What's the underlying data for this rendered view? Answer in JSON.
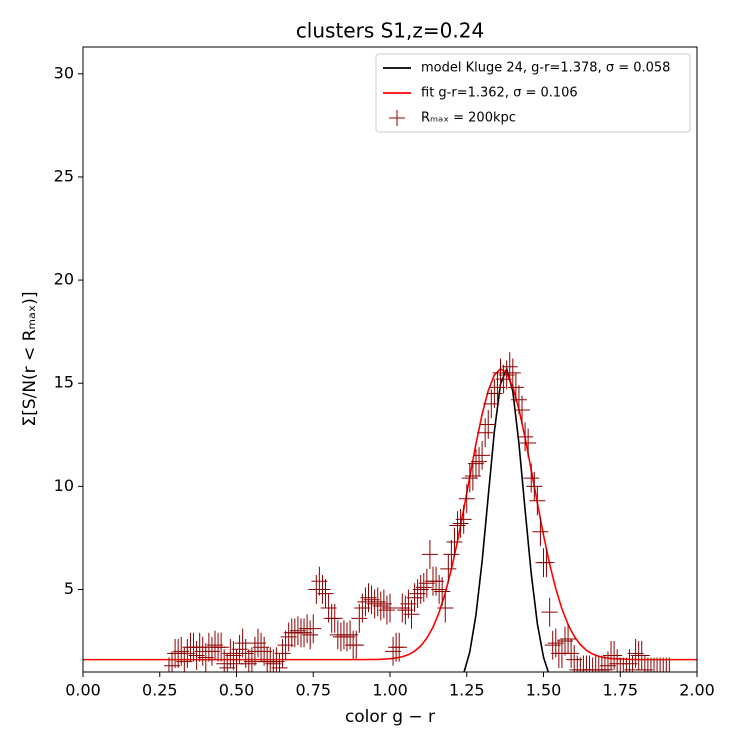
{
  "chart_data": {
    "type": "line",
    "title": "clusters S1,z=0.24",
    "xlabel": "color g − r",
    "ylabel": "Σ[S/N(r < Rₘₐₓ)]",
    "xlim": [
      0,
      2
    ],
    "ylim": [
      1,
      31.3
    ],
    "xticks": [
      {
        "value": 0,
        "label": "0.00"
      },
      0.25,
      {
        "value": 0.5,
        "label": "0.50"
      },
      0.75,
      {
        "value": 1,
        "label": "1.00"
      },
      1.25,
      {
        "value": 1.5,
        "label": "1.50"
      },
      1.75,
      {
        "value": 2,
        "label": "2.00"
      }
    ],
    "yticks": [
      5,
      10,
      15,
      20,
      25,
      30
    ],
    "legend": "upper right",
    "series": [
      {
        "name": "model Kluge 24, g-r=1.378, σ = 0.058",
        "type": "line",
        "color": "#000000",
        "x": [
          1.22,
          1.24,
          1.26,
          1.28,
          1.3,
          1.32,
          1.34,
          1.36,
          1.38,
          1.4,
          1.42,
          1.44,
          1.46,
          1.48,
          1.5,
          1.52,
          1.54
        ],
        "values": [
          0.38,
          0.93,
          1.98,
          3.77,
          6.36,
          9.52,
          12.67,
          14.96,
          15.69,
          14.61,
          12.08,
          8.87,
          5.78,
          3.34,
          1.72,
          0.79,
          0.32
        ]
      },
      {
        "name": "fit g-r=1.362, σ = 0.106",
        "type": "line",
        "color": "#ff0000",
        "x": [
          0,
          0.5,
          0.9,
          0.96,
          1.0,
          1.02,
          1.04,
          1.06,
          1.08,
          1.1,
          1.12,
          1.14,
          1.16,
          1.18,
          1.2,
          1.22,
          1.24,
          1.26,
          1.28,
          1.3,
          1.32,
          1.34,
          1.36,
          1.38,
          1.4,
          1.42,
          1.44,
          1.46,
          1.48,
          1.5,
          1.52,
          1.54,
          1.56,
          1.58,
          1.6,
          1.62,
          1.64,
          1.66,
          1.68,
          1.7,
          1.72,
          1.8,
          2.0
        ],
        "values": [
          1.6,
          1.6,
          1.6,
          1.61,
          1.64,
          1.68,
          1.74,
          1.84,
          2.01,
          2.26,
          2.64,
          3.17,
          3.89,
          4.83,
          5.99,
          7.35,
          8.87,
          10.47,
          12.06,
          13.49,
          14.64,
          15.4,
          15.7,
          15.5,
          14.82,
          13.74,
          12.36,
          10.8,
          9.19,
          7.64,
          6.24,
          5.04,
          4.06,
          3.3,
          2.73,
          2.33,
          2.05,
          1.87,
          1.76,
          1.69,
          1.65,
          1.6,
          1.6
        ]
      },
      {
        "name": "Rₘₐₓ = 200kpc",
        "type": "errorbar",
        "color": "#8b0000",
        "yerr": 0.7,
        "x": [
          0.28,
          0.29,
          0.3,
          0.31,
          0.32,
          0.33,
          0.34,
          0.35,
          0.36,
          0.37,
          0.38,
          0.39,
          0.4,
          0.41,
          0.42,
          0.43,
          0.44,
          0.45,
          0.46,
          0.47,
          0.48,
          0.49,
          0.5,
          0.51,
          0.52,
          0.53,
          0.54,
          0.55,
          0.56,
          0.57,
          0.58,
          0.59,
          0.6,
          0.61,
          0.62,
          0.63,
          0.64,
          0.65,
          0.66,
          0.67,
          0.68,
          0.69,
          0.7,
          0.71,
          0.72,
          0.73,
          0.74,
          0.75,
          0.76,
          0.77,
          0.78,
          0.79,
          0.8,
          0.81,
          0.82,
          0.83,
          0.84,
          0.85,
          0.86,
          0.87,
          0.88,
          0.89,
          0.9,
          0.91,
          0.92,
          0.93,
          0.94,
          0.95,
          0.96,
          0.97,
          0.98,
          0.99,
          1.0,
          1.01,
          1.02,
          1.03,
          1.04,
          1.05,
          1.06,
          1.07,
          1.08,
          1.09,
          1.1,
          1.11,
          1.12,
          1.13,
          1.14,
          1.15,
          1.16,
          1.17,
          1.18,
          1.19,
          1.2,
          1.21,
          1.22,
          1.23,
          1.24,
          1.25,
          1.26,
          1.27,
          1.28,
          1.29,
          1.3,
          1.31,
          1.32,
          1.33,
          1.34,
          1.35,
          1.36,
          1.37,
          1.38,
          1.39,
          1.4,
          1.41,
          1.42,
          1.43,
          1.44,
          1.45,
          1.46,
          1.47,
          1.48,
          1.49,
          1.5,
          1.51,
          1.52,
          1.53,
          1.54,
          1.55,
          1.56,
          1.57,
          1.58,
          1.59,
          1.6,
          1.61,
          1.62,
          1.63,
          1.64,
          1.65,
          1.66,
          1.67,
          1.68,
          1.69,
          1.7,
          1.71,
          1.72,
          1.73,
          1.74,
          1.75,
          1.76,
          1.77,
          1.78,
          1.79,
          1.8,
          1.81,
          1.82,
          1.83,
          1.84,
          1.85,
          1.86,
          1.87,
          1.88,
          1.89,
          1.9,
          1.91
        ],
        "values": [
          1.0,
          1.3,
          1.9,
          1.9,
          2.0,
          1.5,
          1.9,
          2.2,
          2.2,
          1.8,
          2.2,
          2.0,
          1.7,
          2.2,
          2.0,
          2.3,
          2.2,
          2.2,
          1.4,
          1.2,
          1.9,
          1.8,
          1.4,
          2.1,
          2.4,
          1.9,
          1.4,
          1.5,
          2.0,
          2.4,
          2.2,
          2.0,
          1.5,
          1.5,
          1.4,
          1.5,
          1.2,
          1.9,
          2.3,
          2.7,
          2.9,
          2.9,
          3.0,
          2.9,
          2.9,
          3.1,
          2.8,
          3.1,
          5.0,
          5.4,
          5.0,
          4.8,
          4.1,
          3.6,
          3.6,
          2.8,
          2.7,
          2.8,
          2.7,
          2.8,
          2.3,
          2.3,
          3.6,
          4.1,
          4.4,
          4.6,
          4.5,
          4.3,
          4.4,
          4.2,
          4.3,
          4.0,
          4.1,
          2.0,
          2.2,
          2.2,
          4.1,
          4.0,
          4.3,
          3.8,
          4.6,
          4.8,
          5.0,
          5.1,
          5.3,
          6.7,
          5.4,
          5.4,
          5.0,
          4.9,
          4.1,
          6.0,
          6.7,
          7.3,
          8.1,
          8.2,
          8.4,
          9.4,
          10.4,
          10.5,
          11.1,
          11.2,
          11.5,
          12.6,
          13.0,
          14.0,
          14.5,
          14.8,
          15.5,
          15.2,
          15.4,
          15.8,
          15.5,
          14.8,
          14.2,
          13.7,
          12.4,
          12.1,
          10.4,
          10.0,
          9.3,
          7.8,
          6.3,
          6.3,
          3.9,
          2.3,
          2.4,
          1.9,
          1.9,
          2.5,
          2.6,
          1.9,
          1.6,
          1.1,
          1.0,
          1.1,
          1.1,
          1.1,
          1.0,
          1.1,
          1.1,
          1.1,
          1.1,
          1.3,
          1.8,
          1.8,
          1.4,
          1.0,
          1.0,
          1.0,
          1.4,
          1.1,
          1.9,
          1.8,
          1.8,
          1.1,
          1.0,
          1.0,
          1.0,
          1.0,
          1.0,
          1.0,
          1.0,
          1.0
        ]
      }
    ]
  }
}
